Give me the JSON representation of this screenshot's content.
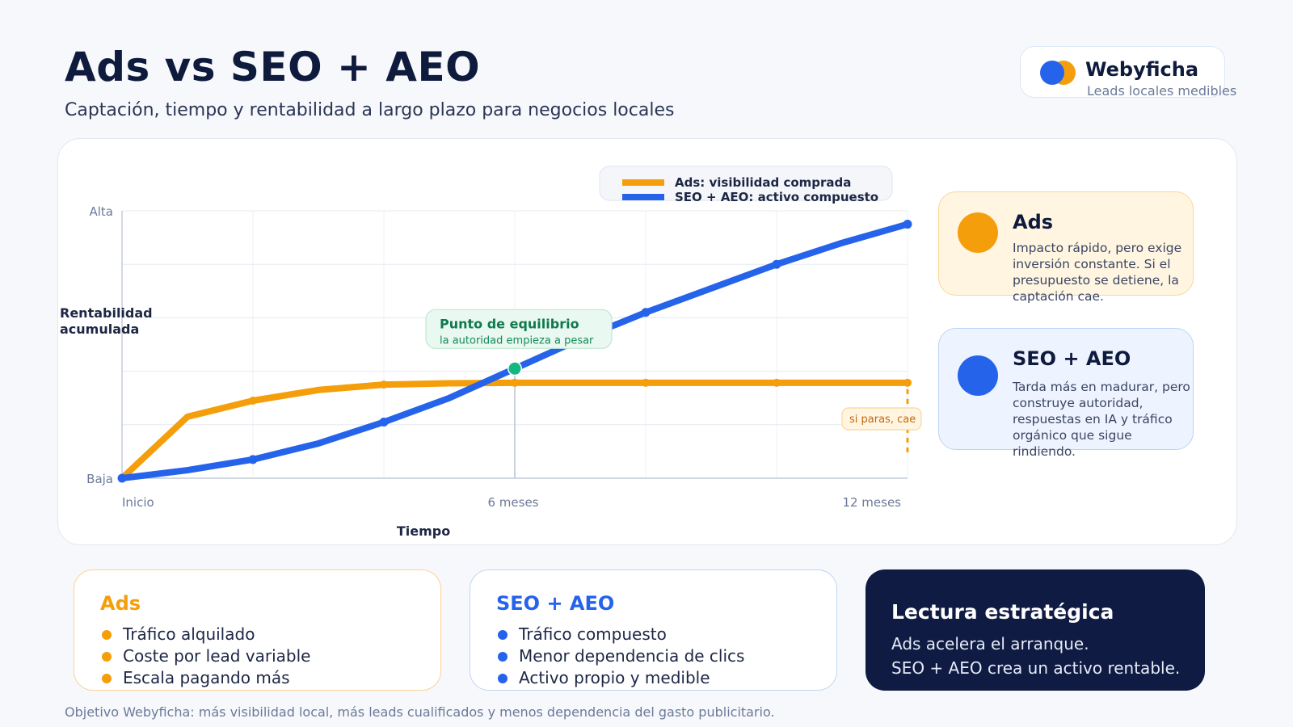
{
  "header": {
    "title": "Ads vs SEO + AEO",
    "subtitle": "Captación, tiempo y rentabilidad a largo plazo para negocios locales"
  },
  "brand": {
    "name": "Webyficha",
    "tagline": "Leads locales medibles"
  },
  "colors": {
    "ads": "#f59e0b",
    "seo": "#2563eb",
    "equilibrium": "#10b981",
    "navy": "#0f1b42"
  },
  "chart_data": {
    "type": "line",
    "xlabel": "Tiempo",
    "ylabel": "Rentabilidad acumulada",
    "x_tick_labels": [
      "Inicio",
      "6 meses",
      "12 meses"
    ],
    "y_tick_labels": [
      "Baja",
      "Alta"
    ],
    "x_unit": "months",
    "xlim": [
      0,
      12
    ],
    "ylim": [
      0,
      100
    ],
    "grid": true,
    "legend_position": "top",
    "series": [
      {
        "name": "Ads: visibilidad comprada",
        "color": "#f59e0b",
        "x": [
          0,
          1,
          2,
          3,
          4,
          5,
          6,
          8,
          10,
          12
        ],
        "y": [
          0,
          23,
          29,
          33,
          35,
          35.5,
          35.7,
          35.7,
          35.7,
          35.7
        ]
      },
      {
        "name": "SEO + AEO: activo compuesto",
        "color": "#2563eb",
        "x": [
          0,
          1,
          2,
          3,
          4,
          5,
          6,
          7,
          8,
          9,
          10,
          11,
          12
        ],
        "y": [
          0,
          3,
          7,
          13,
          21,
          30,
          41,
          52,
          62,
          71,
          80,
          88,
          95
        ]
      }
    ],
    "annotations": [
      {
        "type": "point",
        "x": 6,
        "y": 41,
        "title": "Punto de equilibrio",
        "text": "la autoridad empieza a pesar"
      },
      {
        "type": "note",
        "x": 12,
        "text": "si paras, cae"
      }
    ]
  },
  "side_cards": {
    "ads": {
      "title": "Ads",
      "text": "Impacto rápido, pero exige inversión constante. Si el presupuesto se detiene, la captación cae."
    },
    "seo": {
      "title": "SEO + AEO",
      "text": "Tarda más en madurar, pero construye autoridad, respuestas en IA y tráfico orgánico que sigue rindiendo."
    }
  },
  "bottom_cards": {
    "ads": {
      "title": "Ads",
      "items": [
        "Tráfico alquilado",
        "Coste por lead variable",
        "Escala pagando más"
      ]
    },
    "seo": {
      "title": "SEO + AEO",
      "items": [
        "Tráfico compuesto",
        "Menor dependencia de clics",
        "Activo propio y medible"
      ]
    },
    "lectura": {
      "title": "Lectura estratégica",
      "line1": "Ads acelera el arranque.",
      "line2": "SEO + AEO crea un activo rentable."
    }
  },
  "footer": "Objetivo Webyficha: más visibilidad local, más leads cualificados y menos dependencia del gasto publicitario."
}
